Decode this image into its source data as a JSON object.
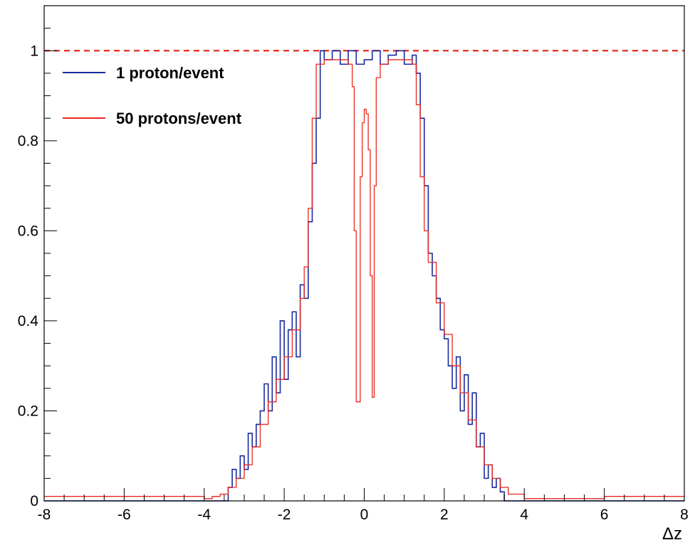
{
  "chart_data": {
    "type": "line",
    "title": "",
    "xlabel": "Δz",
    "ylabel": "",
    "xlim": [
      -8,
      8
    ],
    "ylim": [
      0,
      1.1
    ],
    "x_ticks": [
      "-8",
      "-6",
      "-4",
      "-2",
      "0",
      "2",
      "4",
      "6",
      "8"
    ],
    "y_ticks": [
      "0",
      "0.2",
      "0.4",
      "0.6",
      "0.8",
      "1"
    ],
    "reference_line": {
      "y": 1.0,
      "style": "dashed",
      "color": "#e8281e"
    },
    "legend": {
      "placement": "top-left"
    },
    "series": [
      {
        "name": "1 proton/event",
        "color": "#1a2a9e",
        "step": true,
        "points": [
          [
            -8.0,
            0.0
          ],
          [
            -4.0,
            0.0
          ],
          [
            -3.5,
            0.0
          ],
          [
            -3.4,
            0.03
          ],
          [
            -3.3,
            0.07
          ],
          [
            -3.2,
            0.05
          ],
          [
            -3.1,
            0.1
          ],
          [
            -3.0,
            0.07
          ],
          [
            -2.9,
            0.15
          ],
          [
            -2.8,
            0.12
          ],
          [
            -2.7,
            0.17
          ],
          [
            -2.6,
            0.2
          ],
          [
            -2.5,
            0.26
          ],
          [
            -2.4,
            0.2
          ],
          [
            -2.3,
            0.32
          ],
          [
            -2.2,
            0.24
          ],
          [
            -2.1,
            0.4
          ],
          [
            -2.0,
            0.27
          ],
          [
            -1.9,
            0.38
          ],
          [
            -1.8,
            0.42
          ],
          [
            -1.7,
            0.32
          ],
          [
            -1.6,
            0.48
          ],
          [
            -1.5,
            0.45
          ],
          [
            -1.4,
            0.62
          ],
          [
            -1.3,
            0.75
          ],
          [
            -1.2,
            0.85
          ],
          [
            -1.1,
            1.0
          ],
          [
            -1.0,
            0.98
          ],
          [
            -0.8,
            1.0
          ],
          [
            -0.6,
            0.97
          ],
          [
            -0.4,
            1.0
          ],
          [
            -0.2,
            0.97
          ],
          [
            0.0,
            0.98
          ],
          [
            0.2,
            1.0
          ],
          [
            0.4,
            0.97
          ],
          [
            0.6,
            0.99
          ],
          [
            0.8,
            1.0
          ],
          [
            1.0,
            0.97
          ],
          [
            1.2,
            0.99
          ],
          [
            1.3,
            0.95
          ],
          [
            1.4,
            0.85
          ],
          [
            1.5,
            0.7
          ],
          [
            1.6,
            0.55
          ],
          [
            1.7,
            0.5
          ],
          [
            1.8,
            0.45
          ],
          [
            1.9,
            0.38
          ],
          [
            2.0,
            0.36
          ],
          [
            2.1,
            0.3
          ],
          [
            2.2,
            0.25
          ],
          [
            2.3,
            0.32
          ],
          [
            2.4,
            0.2
          ],
          [
            2.5,
            0.28
          ],
          [
            2.6,
            0.17
          ],
          [
            2.7,
            0.24
          ],
          [
            2.8,
            0.12
          ],
          [
            2.9,
            0.15
          ],
          [
            3.0,
            0.05
          ],
          [
            3.1,
            0.08
          ],
          [
            3.2,
            0.03
          ],
          [
            3.3,
            0.05
          ],
          [
            3.4,
            0.02
          ],
          [
            3.5,
            0.0
          ],
          [
            4.0,
            0.0
          ],
          [
            8.0,
            0.0
          ]
        ]
      },
      {
        "name": "50 protons/event",
        "color": "#e8281e",
        "step": true,
        "points": [
          [
            -8.0,
            0.01
          ],
          [
            -4.0,
            0.005
          ],
          [
            -3.8,
            0.01
          ],
          [
            -3.6,
            0.015
          ],
          [
            -3.4,
            0.03
          ],
          [
            -3.2,
            0.05
          ],
          [
            -3.0,
            0.08
          ],
          [
            -2.8,
            0.12
          ],
          [
            -2.6,
            0.17
          ],
          [
            -2.4,
            0.22
          ],
          [
            -2.2,
            0.27
          ],
          [
            -2.0,
            0.32
          ],
          [
            -1.8,
            0.38
          ],
          [
            -1.6,
            0.45
          ],
          [
            -1.5,
            0.52
          ],
          [
            -1.4,
            0.65
          ],
          [
            -1.3,
            0.85
          ],
          [
            -1.2,
            0.97
          ],
          [
            -1.0,
            0.98
          ],
          [
            -0.6,
            0.98
          ],
          [
            -0.4,
            0.97
          ],
          [
            -0.3,
            0.92
          ],
          [
            -0.25,
            0.6
          ],
          [
            -0.2,
            0.22
          ],
          [
            -0.1,
            0.72
          ],
          [
            -0.05,
            0.84
          ],
          [
            0.0,
            0.87
          ],
          [
            0.05,
            0.86
          ],
          [
            0.1,
            0.78
          ],
          [
            0.15,
            0.5
          ],
          [
            0.2,
            0.23
          ],
          [
            0.25,
            0.7
          ],
          [
            0.3,
            0.94
          ],
          [
            0.4,
            0.97
          ],
          [
            0.6,
            0.98
          ],
          [
            1.0,
            0.98
          ],
          [
            1.2,
            0.97
          ],
          [
            1.3,
            0.88
          ],
          [
            1.4,
            0.72
          ],
          [
            1.5,
            0.6
          ],
          [
            1.6,
            0.53
          ],
          [
            1.8,
            0.44
          ],
          [
            2.0,
            0.37
          ],
          [
            2.2,
            0.3
          ],
          [
            2.4,
            0.24
          ],
          [
            2.6,
            0.18
          ],
          [
            2.8,
            0.12
          ],
          [
            3.0,
            0.08
          ],
          [
            3.2,
            0.05
          ],
          [
            3.4,
            0.03
          ],
          [
            3.6,
            0.015
          ],
          [
            4.0,
            0.005
          ],
          [
            6.0,
            0.01
          ],
          [
            8.0,
            0.01
          ]
        ]
      }
    ]
  }
}
